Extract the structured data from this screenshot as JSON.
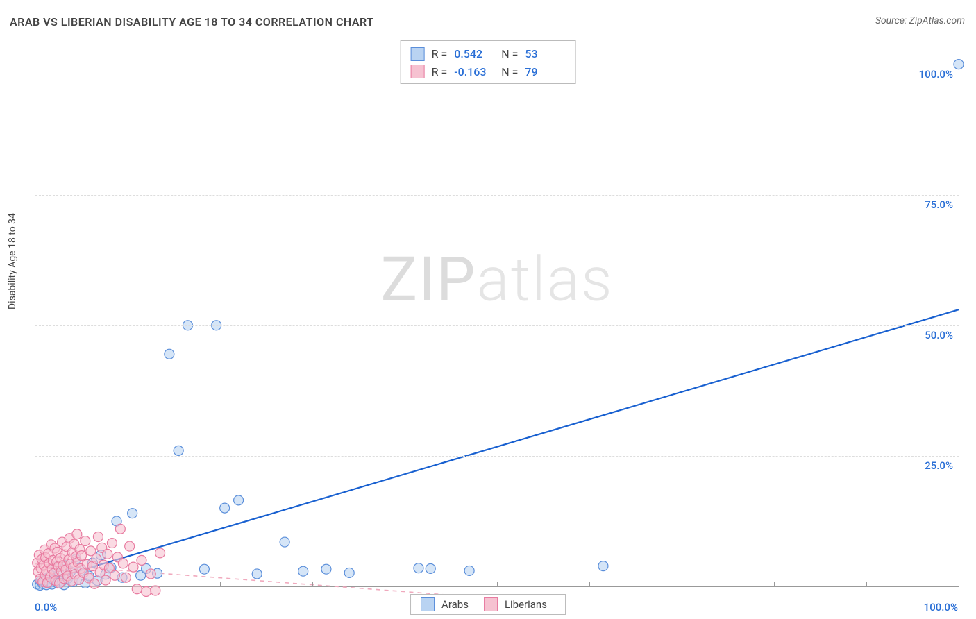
{
  "title": "ARAB VS LIBERIAN DISABILITY AGE 18 TO 34 CORRELATION CHART",
  "source_prefix": "Source: ",
  "source_name": "ZipAtlas.com",
  "ylabel": "Disability Age 18 to 34",
  "watermark_a": "ZIP",
  "watermark_b": "atlas",
  "chart": {
    "type": "scatter",
    "xlim": [
      0,
      100
    ],
    "ylim": [
      0,
      105
    ],
    "xtick_step": 10,
    "yticks": [
      25,
      50,
      75,
      100
    ],
    "ytick_labels": [
      "25.0%",
      "50.0%",
      "75.0%",
      "100.0%"
    ],
    "xmin_label": "0.0%",
    "xmax_label": "100.0%",
    "tick_label_color": "#2a6fd6",
    "grid_color": "#dddddd",
    "axis_color": "#999999",
    "background_color": "#ffffff",
    "marker_radius": 7,
    "marker_stroke_width": 1.2,
    "series": [
      {
        "name": "Arabs",
        "fill": "#b9d3f2",
        "stroke": "#5a8eda",
        "fill_opacity": 0.6,
        "trend": {
          "type": "solid",
          "color": "#1860d0",
          "width": 2.2,
          "x1": 0,
          "y1": 0.5,
          "x2": 100,
          "y2": 53
        },
        "points": [
          [
            0.2,
            0.4
          ],
          [
            0.5,
            0.2
          ],
          [
            0.6,
            1.1
          ],
          [
            0.8,
            0.5
          ],
          [
            1.0,
            0.9
          ],
          [
            1.2,
            0.3
          ],
          [
            1.3,
            1.6
          ],
          [
            1.5,
            0.7
          ],
          [
            1.6,
            2.1
          ],
          [
            1.8,
            0.4
          ],
          [
            2.0,
            1.2
          ],
          [
            2.2,
            3.7
          ],
          [
            2.4,
            0.6
          ],
          [
            2.6,
            2.4
          ],
          [
            2.9,
            1.0
          ],
          [
            3.1,
            0.3
          ],
          [
            3.3,
            4.0
          ],
          [
            3.5,
            1.5
          ],
          [
            3.8,
            2.8
          ],
          [
            4.1,
            0.9
          ],
          [
            4.4,
            5.2
          ],
          [
            4.7,
            1.3
          ],
          [
            5.0,
            3.1
          ],
          [
            5.4,
            0.6
          ],
          [
            5.8,
            2.0
          ],
          [
            6.2,
            4.5
          ],
          [
            6.7,
            1.1
          ],
          [
            7.1,
            6.0
          ],
          [
            7.6,
            2.3
          ],
          [
            8.2,
            3.6
          ],
          [
            8.8,
            12.5
          ],
          [
            9.4,
            1.7
          ],
          [
            10.5,
            14.0
          ],
          [
            11.4,
            2.1
          ],
          [
            12.0,
            3.4
          ],
          [
            13.2,
            2.5
          ],
          [
            14.5,
            44.5
          ],
          [
            15.5,
            26.0
          ],
          [
            16.5,
            50.0
          ],
          [
            18.3,
            3.3
          ],
          [
            19.6,
            50.0
          ],
          [
            20.5,
            15.0
          ],
          [
            22.0,
            16.5
          ],
          [
            24.0,
            2.4
          ],
          [
            27.0,
            8.5
          ],
          [
            29.0,
            2.9
          ],
          [
            31.5,
            3.3
          ],
          [
            34.0,
            2.6
          ],
          [
            41.5,
            3.5
          ],
          [
            42.8,
            3.4
          ],
          [
            47.0,
            3.0
          ],
          [
            61.5,
            3.9
          ],
          [
            100,
            100
          ]
        ]
      },
      {
        "name": "Liberians",
        "fill": "#f6c2d1",
        "stroke": "#e87ba0",
        "fill_opacity": 0.6,
        "trend": {
          "type": "dashed",
          "color": "#f0a9bd",
          "width": 1.6,
          "x1": 0,
          "y1": 4.3,
          "x2": 55,
          "y2": -3
        },
        "points": [
          [
            0.2,
            4.5
          ],
          [
            0.3,
            2.8
          ],
          [
            0.4,
            6.0
          ],
          [
            0.5,
            1.4
          ],
          [
            0.6,
            3.5
          ],
          [
            0.7,
            5.2
          ],
          [
            0.8,
            0.9
          ],
          [
            0.9,
            4.1
          ],
          [
            1.0,
            7.0
          ],
          [
            1.05,
            2.2
          ],
          [
            1.1,
            5.5
          ],
          [
            1.2,
            3.0
          ],
          [
            1.3,
            0.7
          ],
          [
            1.4,
            6.3
          ],
          [
            1.5,
            4.4
          ],
          [
            1.6,
            1.8
          ],
          [
            1.7,
            8.0
          ],
          [
            1.8,
            3.3
          ],
          [
            1.9,
            5.0
          ],
          [
            2.0,
            2.5
          ],
          [
            2.1,
            7.3
          ],
          [
            2.2,
            1.1
          ],
          [
            2.3,
            4.7
          ],
          [
            2.4,
            6.6
          ],
          [
            2.5,
            3.8
          ],
          [
            2.6,
            0.6
          ],
          [
            2.7,
            5.4
          ],
          [
            2.8,
            2.9
          ],
          [
            2.9,
            8.5
          ],
          [
            3.0,
            4.0
          ],
          [
            3.1,
            1.5
          ],
          [
            3.2,
            6.1
          ],
          [
            3.3,
            3.2
          ],
          [
            3.4,
            7.6
          ],
          [
            3.5,
            2.0
          ],
          [
            3.6,
            5.1
          ],
          [
            3.7,
            9.2
          ],
          [
            3.8,
            4.3
          ],
          [
            3.9,
            1.0
          ],
          [
            4.0,
            6.5
          ],
          [
            4.1,
            3.6
          ],
          [
            4.2,
            8.1
          ],
          [
            4.3,
            2.3
          ],
          [
            4.4,
            5.7
          ],
          [
            4.5,
            10.0
          ],
          [
            4.6,
            4.6
          ],
          [
            4.7,
            1.3
          ],
          [
            4.8,
            7.1
          ],
          [
            4.9,
            3.4
          ],
          [
            5.0,
            5.9
          ],
          [
            5.2,
            2.6
          ],
          [
            5.4,
            8.7
          ],
          [
            5.6,
            4.2
          ],
          [
            5.8,
            1.6
          ],
          [
            6.0,
            6.8
          ],
          [
            6.2,
            3.9
          ],
          [
            6.4,
            0.5
          ],
          [
            6.6,
            5.3
          ],
          [
            6.8,
            9.5
          ],
          [
            7.0,
            2.7
          ],
          [
            7.2,
            7.4
          ],
          [
            7.4,
            4.1
          ],
          [
            7.6,
            1.2
          ],
          [
            7.8,
            6.2
          ],
          [
            8.0,
            3.5
          ],
          [
            8.3,
            8.3
          ],
          [
            8.6,
            2.1
          ],
          [
            8.9,
            5.6
          ],
          [
            9.2,
            11.0
          ],
          [
            9.5,
            4.4
          ],
          [
            9.8,
            1.7
          ],
          [
            10.2,
            7.7
          ],
          [
            10.6,
            3.7
          ],
          [
            11.0,
            -0.5
          ],
          [
            11.5,
            5.0
          ],
          [
            12.0,
            -1.0
          ],
          [
            12.5,
            2.4
          ],
          [
            13.0,
            -0.8
          ],
          [
            13.5,
            6.4
          ]
        ]
      }
    ]
  },
  "stats": {
    "rows": [
      {
        "swatch_fill": "#b9d3f2",
        "swatch_stroke": "#5a8eda",
        "r_label": "R =",
        "r_value": "0.542",
        "n_label": "N =",
        "n_value": "53"
      },
      {
        "swatch_fill": "#f6c2d1",
        "swatch_stroke": "#e87ba0",
        "r_label": "R =",
        "r_value": "-0.163",
        "n_label": "N =",
        "n_value": "79"
      }
    ]
  },
  "legend": {
    "items": [
      {
        "swatch_fill": "#b9d3f2",
        "swatch_stroke": "#5a8eda",
        "label": "Arabs"
      },
      {
        "swatch_fill": "#f6c2d1",
        "swatch_stroke": "#e87ba0",
        "label": "Liberians"
      }
    ]
  }
}
